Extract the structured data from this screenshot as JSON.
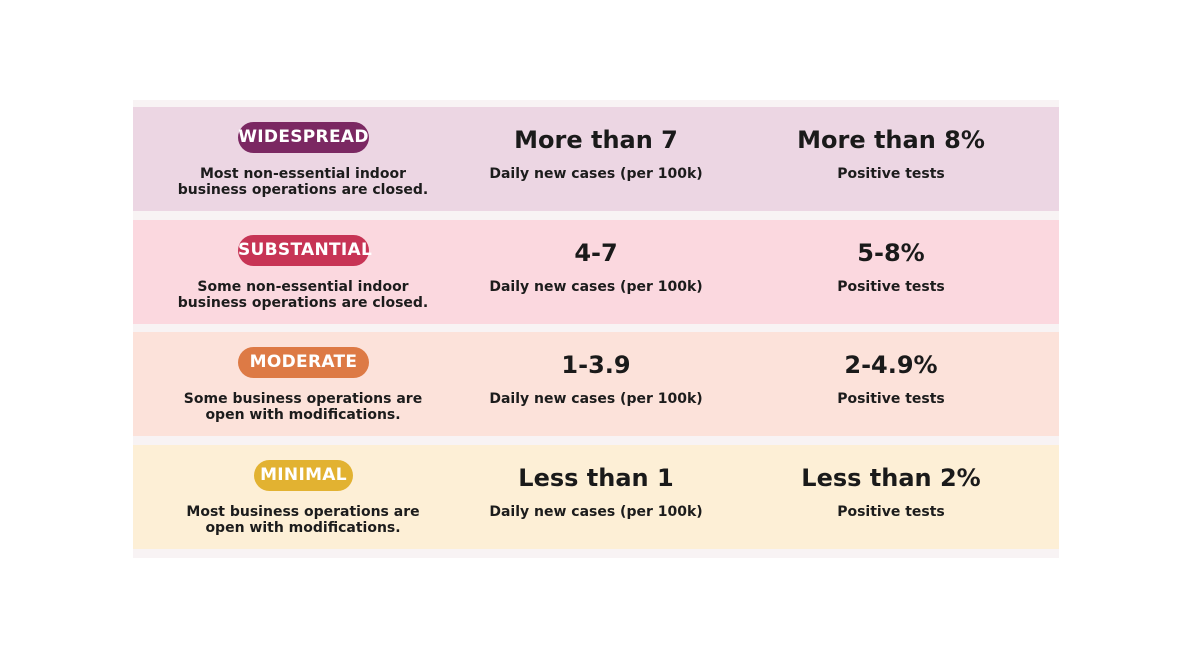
{
  "tiers": [
    {
      "name": "WIDESPREAD",
      "description": "Most non-essential indoor business operations are closed.",
      "cases_value": "More than 7",
      "cases_label": "Daily new cases (per 100k)",
      "tests_value": "More than 8%",
      "tests_label": "Positive tests",
      "badge_color": "#7b2862",
      "row_color": "#ecd6e3"
    },
    {
      "name": "SUBSTANTIAL",
      "description": "Some non-essential indoor business operations are closed.",
      "cases_value": "4-7",
      "cases_label": "Daily new cases (per 100k)",
      "tests_value": "5-8%",
      "tests_label": "Positive tests",
      "badge_color": "#c73455",
      "row_color": "#fbd8df"
    },
    {
      "name": "MODERATE",
      "description": "Some business operations are open with modifications.",
      "cases_value": "1-3.9",
      "cases_label": "Daily new cases (per 100k)",
      "tests_value": "2-4.9%",
      "tests_label": "Positive tests",
      "badge_color": "#dd7a45",
      "row_color": "#fce2da"
    },
    {
      "name": "MINIMAL",
      "description": "Most business operations are open with modifications.",
      "cases_value": "Less than 1",
      "cases_label": "Daily new cases (per 100k)",
      "tests_value": "Less than 2%",
      "tests_label": "Positive tests",
      "badge_color": "#e2b231",
      "row_color": "#fdefd6"
    }
  ]
}
